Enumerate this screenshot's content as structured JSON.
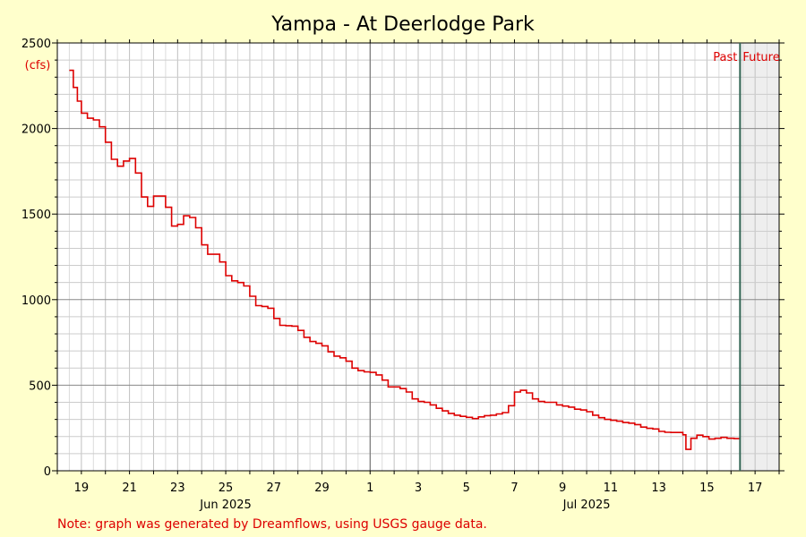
{
  "chart_data": {
    "type": "line",
    "title": "Yampa - At Deerlodge Park",
    "ylabel": "(cfs)",
    "ylim": [
      0,
      2500
    ],
    "yticks": [
      0,
      500,
      1000,
      1500,
      2000,
      2500
    ],
    "xlim": [
      "2025-06-18",
      "2025-07-18"
    ],
    "grid": true,
    "x_tick_labels": [
      {
        "date": "2025-06-19",
        "label": "19"
      },
      {
        "date": "2025-06-21",
        "label": "21"
      },
      {
        "date": "2025-06-23",
        "label": "23"
      },
      {
        "date": "2025-06-25",
        "label": "25"
      },
      {
        "date": "2025-06-27",
        "label": "27"
      },
      {
        "date": "2025-06-29",
        "label": "29"
      },
      {
        "date": "2025-07-01",
        "label": "1"
      },
      {
        "date": "2025-07-03",
        "label": "3"
      },
      {
        "date": "2025-07-05",
        "label": "5"
      },
      {
        "date": "2025-07-07",
        "label": "7"
      },
      {
        "date": "2025-07-09",
        "label": "9"
      },
      {
        "date": "2025-07-11",
        "label": "11"
      },
      {
        "date": "2025-07-13",
        "label": "13"
      },
      {
        "date": "2025-07-15",
        "label": "15"
      },
      {
        "date": "2025-07-17",
        "label": "17"
      }
    ],
    "month_labels": [
      {
        "date": "2025-06-25",
        "label": "Jun 2025"
      },
      {
        "date": "2025-07-10",
        "label": "Jul 2025"
      }
    ],
    "month_boundary": "2025-07-01",
    "now_marker": {
      "date": "2025-07-16 09:00",
      "past_label": "Past",
      "future_label": "Future"
    },
    "series": [
      {
        "color": "#dd0000",
        "points": [
          [
            "2025-06-18 12:00",
            2340
          ],
          [
            "2025-06-18 16:00",
            2240
          ],
          [
            "2025-06-18 20:00",
            2160
          ],
          [
            "2025-06-19 00:00",
            2090
          ],
          [
            "2025-06-19 06:00",
            2060
          ],
          [
            "2025-06-19 12:00",
            2050
          ],
          [
            "2025-06-19 18:00",
            2010
          ],
          [
            "2025-06-20 00:00",
            1920
          ],
          [
            "2025-06-20 06:00",
            1820
          ],
          [
            "2025-06-20 12:00",
            1780
          ],
          [
            "2025-06-20 18:00",
            1810
          ],
          [
            "2025-06-21 00:00",
            1825
          ],
          [
            "2025-06-21 06:00",
            1740
          ],
          [
            "2025-06-21 12:00",
            1600
          ],
          [
            "2025-06-21 18:00",
            1545
          ],
          [
            "2025-06-22 00:00",
            1605
          ],
          [
            "2025-06-22 06:00",
            1605
          ],
          [
            "2025-06-22 12:00",
            1540
          ],
          [
            "2025-06-22 18:00",
            1430
          ],
          [
            "2025-06-23 00:00",
            1440
          ],
          [
            "2025-06-23 06:00",
            1490
          ],
          [
            "2025-06-23 12:00",
            1480
          ],
          [
            "2025-06-23 18:00",
            1420
          ],
          [
            "2025-06-24 00:00",
            1320
          ],
          [
            "2025-06-24 06:00",
            1265
          ],
          [
            "2025-06-24 12:00",
            1265
          ],
          [
            "2025-06-24 18:00",
            1220
          ],
          [
            "2025-06-25 00:00",
            1140
          ],
          [
            "2025-06-25 06:00",
            1110
          ],
          [
            "2025-06-25 12:00",
            1100
          ],
          [
            "2025-06-25 18:00",
            1080
          ],
          [
            "2025-06-26 00:00",
            1020
          ],
          [
            "2025-06-26 06:00",
            965
          ],
          [
            "2025-06-26 12:00",
            960
          ],
          [
            "2025-06-26 18:00",
            950
          ],
          [
            "2025-06-27 00:00",
            890
          ],
          [
            "2025-06-27 06:00",
            850
          ],
          [
            "2025-06-27 12:00",
            848
          ],
          [
            "2025-06-27 18:00",
            845
          ],
          [
            "2025-06-28 00:00",
            820
          ],
          [
            "2025-06-28 06:00",
            780
          ],
          [
            "2025-06-28 12:00",
            755
          ],
          [
            "2025-06-28 18:00",
            745
          ],
          [
            "2025-06-29 00:00",
            730
          ],
          [
            "2025-06-29 06:00",
            695
          ],
          [
            "2025-06-29 12:00",
            670
          ],
          [
            "2025-06-29 18:00",
            660
          ],
          [
            "2025-06-30 00:00",
            640
          ],
          [
            "2025-06-30 06:00",
            600
          ],
          [
            "2025-06-30 12:00",
            585
          ],
          [
            "2025-06-30 18:00",
            578
          ],
          [
            "2025-07-01 00:00",
            575
          ],
          [
            "2025-07-01 06:00",
            560
          ],
          [
            "2025-07-01 12:00",
            530
          ],
          [
            "2025-07-01 18:00",
            490
          ],
          [
            "2025-07-02 00:00",
            490
          ],
          [
            "2025-07-02 06:00",
            480
          ],
          [
            "2025-07-02 12:00",
            460
          ],
          [
            "2025-07-02 18:00",
            420
          ],
          [
            "2025-07-03 00:00",
            405
          ],
          [
            "2025-07-03 06:00",
            400
          ],
          [
            "2025-07-03 12:00",
            385
          ],
          [
            "2025-07-03 18:00",
            365
          ],
          [
            "2025-07-04 00:00",
            350
          ],
          [
            "2025-07-04 06:00",
            335
          ],
          [
            "2025-07-04 12:00",
            325
          ],
          [
            "2025-07-04 18:00",
            318
          ],
          [
            "2025-07-05 00:00",
            312
          ],
          [
            "2025-07-05 06:00",
            305
          ],
          [
            "2025-07-05 12:00",
            315
          ],
          [
            "2025-07-05 18:00",
            322
          ],
          [
            "2025-07-06 00:00",
            325
          ],
          [
            "2025-07-06 06:00",
            332
          ],
          [
            "2025-07-06 12:00",
            340
          ],
          [
            "2025-07-06 18:00",
            380
          ],
          [
            "2025-07-07 00:00",
            460
          ],
          [
            "2025-07-07 06:00",
            470
          ],
          [
            "2025-07-07 12:00",
            455
          ],
          [
            "2025-07-07 18:00",
            420
          ],
          [
            "2025-07-08 00:00",
            405
          ],
          [
            "2025-07-08 06:00",
            400
          ],
          [
            "2025-07-08 12:00",
            400
          ],
          [
            "2025-07-08 18:00",
            385
          ],
          [
            "2025-07-09 00:00",
            378
          ],
          [
            "2025-07-09 06:00",
            372
          ],
          [
            "2025-07-09 12:00",
            360
          ],
          [
            "2025-07-09 18:00",
            355
          ],
          [
            "2025-07-10 00:00",
            345
          ],
          [
            "2025-07-10 06:00",
            325
          ],
          [
            "2025-07-10 12:00",
            310
          ],
          [
            "2025-07-10 18:00",
            300
          ],
          [
            "2025-07-11 00:00",
            295
          ],
          [
            "2025-07-11 06:00",
            290
          ],
          [
            "2025-07-11 12:00",
            282
          ],
          [
            "2025-07-11 18:00",
            278
          ],
          [
            "2025-07-12 00:00",
            270
          ],
          [
            "2025-07-12 06:00",
            255
          ],
          [
            "2025-07-12 12:00",
            248
          ],
          [
            "2025-07-12 18:00",
            244
          ],
          [
            "2025-07-13 00:00",
            230
          ],
          [
            "2025-07-13 06:00",
            225
          ],
          [
            "2025-07-13 12:00",
            224
          ],
          [
            "2025-07-13 18:00",
            224
          ],
          [
            "2025-07-14 00:00",
            210
          ],
          [
            "2025-07-14 03:00",
            125
          ],
          [
            "2025-07-14 08:00",
            190
          ],
          [
            "2025-07-14 14:00",
            208
          ],
          [
            "2025-07-14 20:00",
            200
          ],
          [
            "2025-07-15 02:00",
            185
          ],
          [
            "2025-07-15 08:00",
            190
          ],
          [
            "2025-07-15 14:00",
            195
          ],
          [
            "2025-07-15 20:00",
            190
          ],
          [
            "2025-07-16 03:00",
            188
          ],
          [
            "2025-07-16 09:00",
            185
          ]
        ]
      }
    ]
  },
  "footer": {
    "note": "Note: graph was generated by Dreamflows, using USGS gauge data."
  }
}
